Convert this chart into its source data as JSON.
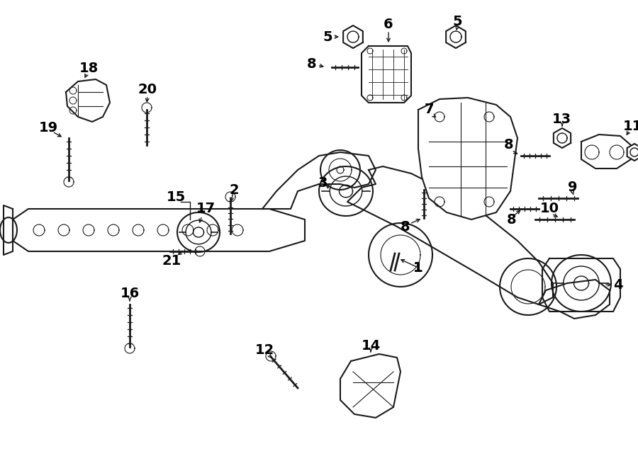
{
  "bg_color": "#ffffff",
  "line_color": "#1a1a1a",
  "text_color": "#000000",
  "fig_width": 9.0,
  "fig_height": 6.61,
  "dpi": 100,
  "parts": {
    "label_fontsize": 14,
    "label_fontweight": "bold"
  }
}
